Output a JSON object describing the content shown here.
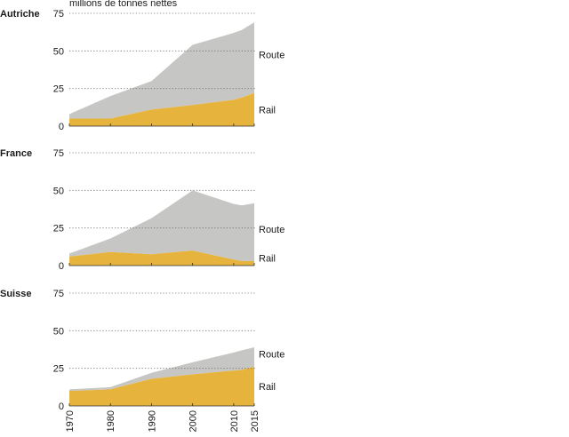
{
  "unit_label": "millions de tonnes nettes",
  "colors": {
    "route": "#c6c6c5",
    "rail": "#e6b43c"
  },
  "chart_data": [
    {
      "type": "area",
      "title": "Autriche",
      "x": [
        1970,
        1980,
        1990,
        2000,
        2010,
        2012,
        2015
      ],
      "ylim": [
        0,
        75
      ],
      "yticks": [
        "0",
        "25",
        "50",
        "75"
      ],
      "series": [
        {
          "name": "Rail",
          "values": [
            5,
            5,
            11,
            14,
            17.5,
            19,
            22
          ]
        },
        {
          "name": "Route",
          "values": [
            3,
            15,
            19,
            40,
            44.5,
            45,
            47
          ]
        }
      ]
    },
    {
      "type": "area",
      "title": "France",
      "x": [
        1970,
        1980,
        1990,
        2000,
        2010,
        2012,
        2015
      ],
      "ylim": [
        0,
        75
      ],
      "yticks": [
        "0",
        "25",
        "50",
        "75"
      ],
      "series": [
        {
          "name": "Rail",
          "values": [
            6,
            9,
            7.5,
            10,
            4,
            3,
            3
          ]
        },
        {
          "name": "Route",
          "values": [
            2,
            9,
            24,
            40,
            37,
            37,
            38.5
          ]
        }
      ]
    },
    {
      "type": "area",
      "title": "Suisse",
      "x": [
        1970,
        1980,
        1990,
        2000,
        2010,
        2012,
        2015
      ],
      "ylim": [
        0,
        75
      ],
      "yticks": [
        "0",
        "25",
        "50",
        "75"
      ],
      "xticks": [
        "1970",
        "1980",
        "1990",
        "2000",
        "2010",
        "2015"
      ],
      "series": [
        {
          "name": "Rail",
          "values": [
            10,
            11,
            18,
            21,
            23.5,
            24,
            26
          ]
        },
        {
          "name": "Route",
          "values": [
            1,
            1.5,
            4,
            8,
            12,
            13,
            13
          ]
        }
      ]
    }
  ]
}
